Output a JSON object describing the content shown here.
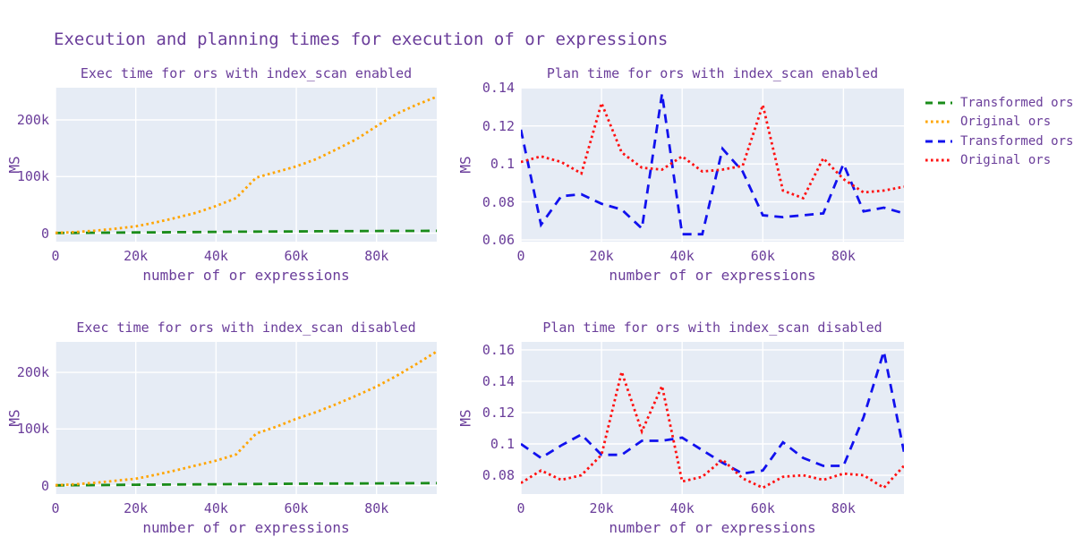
{
  "figure": {
    "title": "Execution and planning times for execution of or expressions"
  },
  "style": {
    "font_color": "#6a3d9a",
    "plot_bg": "#e6ecf5",
    "grid_color": "#ffffff",
    "exec_transformed_color": "#1a8c1a",
    "exec_original_color": "#ffa500",
    "plan_transformed_color": "#1111ee",
    "plan_original_color": "#ff1111"
  },
  "legend": {
    "items": [
      {
        "label": "Transformed ors",
        "color": "#1a8c1a",
        "dash": "dash"
      },
      {
        "label": "Original ors",
        "color": "#ffa500",
        "dash": "dot"
      },
      {
        "label": "Transformed ors",
        "color": "#1111ee",
        "dash": "dash"
      },
      {
        "label": "Original ors",
        "color": "#ff1111",
        "dash": "dot"
      }
    ]
  },
  "chart_data": [
    {
      "type": "line",
      "title": "Exec time for ors with index_scan enabled",
      "xlabel": "number of or expressions",
      "ylabel": "MS",
      "x": [
        0,
        5000,
        10000,
        15000,
        20000,
        25000,
        30000,
        35000,
        40000,
        45000,
        50000,
        55000,
        60000,
        65000,
        70000,
        75000,
        80000,
        85000,
        90000,
        95000
      ],
      "xlim": [
        0,
        95000
      ],
      "ylim": [
        -15000,
        257000
      ],
      "grid": true,
      "xticks": [
        {
          "v": 0,
          "label": "0"
        },
        {
          "v": 20000,
          "label": "20k"
        },
        {
          "v": 40000,
          "label": "40k"
        },
        {
          "v": 60000,
          "label": "60k"
        },
        {
          "v": 80000,
          "label": "80k"
        }
      ],
      "yticks": [
        {
          "v": 0,
          "label": "0"
        },
        {
          "v": 100000,
          "label": "100k"
        },
        {
          "v": 200000,
          "label": "200k"
        }
      ],
      "series": [
        {
          "name": "Transformed ors",
          "color": "#1a8c1a",
          "dash": "dash",
          "values": [
            300,
            500,
            800,
            1000,
            1300,
            1500,
            1800,
            2000,
            2200,
            2500,
            2700,
            2900,
            3100,
            3300,
            3500,
            3600,
            3800,
            3900,
            4000,
            4200
          ]
        },
        {
          "name": "Original ors",
          "color": "#ffa500",
          "dash": "dot",
          "values": [
            500,
            2000,
            4500,
            8000,
            12000,
            19000,
            27000,
            36000,
            48000,
            62000,
            98000,
            108000,
            118000,
            131000,
            148000,
            166000,
            189000,
            211000,
            227000,
            241000
          ]
        }
      ]
    },
    {
      "type": "line",
      "title": "Plan time for ors with index_scan enabled",
      "xlabel": "number of or expressions",
      "ylabel": "MS",
      "x": [
        0,
        5000,
        10000,
        15000,
        20000,
        25000,
        30000,
        35000,
        40000,
        45000,
        50000,
        55000,
        60000,
        65000,
        70000,
        75000,
        80000,
        85000,
        90000,
        95000
      ],
      "xlim": [
        0,
        95000
      ],
      "ylim": [
        0.0591,
        0.1401
      ],
      "grid": true,
      "xticks": [
        {
          "v": 0,
          "label": "0"
        },
        {
          "v": 20000,
          "label": "20k"
        },
        {
          "v": 40000,
          "label": "40k"
        },
        {
          "v": 60000,
          "label": "60k"
        },
        {
          "v": 80000,
          "label": "80k"
        }
      ],
      "yticks": [
        {
          "v": 0.06,
          "label": "0.06"
        },
        {
          "v": 0.08,
          "label": "0.08"
        },
        {
          "v": 0.1,
          "label": "0.1"
        },
        {
          "v": 0.12,
          "label": "0.12"
        },
        {
          "v": 0.14,
          "label": "0.14"
        }
      ],
      "series": [
        {
          "name": "Transformed ors",
          "color": "#1111ee",
          "dash": "dash",
          "values": [
            0.118,
            0.068,
            0.083,
            0.084,
            0.079,
            0.076,
            0.066,
            0.137,
            0.063,
            0.063,
            0.108,
            0.096,
            0.073,
            0.072,
            0.073,
            0.074,
            0.1,
            0.075,
            0.077,
            0.074
          ]
        },
        {
          "name": "Original ors",
          "color": "#ff1111",
          "dash": "dot",
          "values": [
            0.101,
            0.104,
            0.101,
            0.095,
            0.132,
            0.106,
            0.098,
            0.097,
            0.104,
            0.096,
            0.097,
            0.099,
            0.131,
            0.086,
            0.082,
            0.103,
            0.092,
            0.085,
            0.086,
            0.088
          ]
        }
      ]
    },
    {
      "type": "line",
      "title": "Exec time for ors with index_scan disabled",
      "xlabel": "number of or expressions",
      "ylabel": "MS",
      "x": [
        0,
        5000,
        10000,
        15000,
        20000,
        25000,
        30000,
        35000,
        40000,
        45000,
        50000,
        55000,
        60000,
        65000,
        70000,
        75000,
        80000,
        85000,
        90000,
        95000
      ],
      "xlim": [
        0,
        95000
      ],
      "ylim": [
        -15000,
        254000
      ],
      "grid": true,
      "xticks": [
        {
          "v": 0,
          "label": "0"
        },
        {
          "v": 20000,
          "label": "20k"
        },
        {
          "v": 40000,
          "label": "40k"
        },
        {
          "v": 60000,
          "label": "60k"
        },
        {
          "v": 80000,
          "label": "80k"
        }
      ],
      "yticks": [
        {
          "v": 0,
          "label": "0"
        },
        {
          "v": 100000,
          "label": "100k"
        },
        {
          "v": 200000,
          "label": "200k"
        }
      ],
      "series": [
        {
          "name": "Transformed ors",
          "color": "#1a8c1a",
          "dash": "dash",
          "values": [
            300,
            600,
            900,
            1100,
            1400,
            1600,
            1900,
            2100,
            2300,
            2600,
            2800,
            3000,
            3200,
            3400,
            3500,
            3700,
            3800,
            4000,
            4100,
            4300
          ]
        },
        {
          "name": "Original ors",
          "color": "#ffa500",
          "dash": "dot",
          "values": [
            500,
            2200,
            5000,
            8500,
            12000,
            19000,
            27000,
            35500,
            44000,
            55000,
            92000,
            104000,
            118000,
            130000,
            144000,
            159000,
            175000,
            194000,
            215000,
            237000
          ]
        }
      ]
    },
    {
      "type": "line",
      "title": "Plan time for ors with index_scan disabled",
      "xlabel": "number of or expressions",
      "ylabel": "MS",
      "x": [
        0,
        5000,
        10000,
        15000,
        20000,
        25000,
        30000,
        35000,
        40000,
        45000,
        50000,
        55000,
        60000,
        65000,
        70000,
        75000,
        80000,
        85000,
        90000,
        95000
      ],
      "xlim": [
        0,
        95000
      ],
      "ylim": [
        0.068,
        0.1651
      ],
      "grid": true,
      "xticks": [
        {
          "v": 0,
          "label": "0"
        },
        {
          "v": 20000,
          "label": "20k"
        },
        {
          "v": 40000,
          "label": "40k"
        },
        {
          "v": 60000,
          "label": "60k"
        },
        {
          "v": 80000,
          "label": "80k"
        }
      ],
      "yticks": [
        {
          "v": 0.08,
          "label": "0.08"
        },
        {
          "v": 0.1,
          "label": "0.1"
        },
        {
          "v": 0.12,
          "label": "0.12"
        },
        {
          "v": 0.14,
          "label": "0.14"
        },
        {
          "v": 0.16,
          "label": "0.16"
        }
      ],
      "series": [
        {
          "name": "Transformed ors",
          "color": "#1111ee",
          "dash": "dash",
          "values": [
            0.1,
            0.091,
            0.099,
            0.106,
            0.093,
            0.093,
            0.102,
            0.102,
            0.104,
            0.096,
            0.088,
            0.081,
            0.083,
            0.101,
            0.091,
            0.086,
            0.086,
            0.117,
            0.159,
            0.095
          ]
        },
        {
          "name": "Original ors",
          "color": "#ff1111",
          "dash": "dot",
          "values": [
            0.075,
            0.083,
            0.077,
            0.08,
            0.093,
            0.146,
            0.108,
            0.137,
            0.076,
            0.079,
            0.09,
            0.078,
            0.072,
            0.079,
            0.08,
            0.077,
            0.081,
            0.08,
            0.072,
            0.086
          ]
        }
      ]
    }
  ]
}
